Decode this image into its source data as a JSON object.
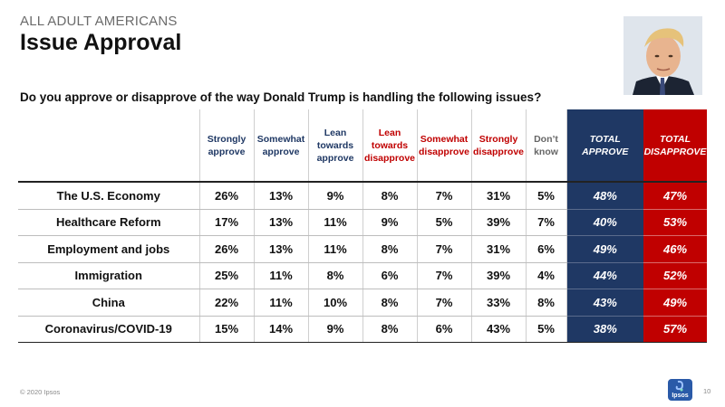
{
  "header": {
    "eyebrow": "ALL ADULT AMERICANS",
    "title": "Issue Approval",
    "question": "Do you approve or disapprove of the way Donald Trump is handling the following issues?"
  },
  "columns": [
    {
      "label": "Strongly approve",
      "tone": "blue"
    },
    {
      "label": "Somewhat approve",
      "tone": "blue"
    },
    {
      "label": "Lean towards approve",
      "tone": "blue"
    },
    {
      "label": "Lean towards disapprove",
      "tone": "red"
    },
    {
      "label": "Somewhat disapprove",
      "tone": "red"
    },
    {
      "label": "Strongly disapprove",
      "tone": "red"
    },
    {
      "label": "Don’t know",
      "tone": "grey"
    },
    {
      "label": "TOTAL APPROVE",
      "tone": "total-approve"
    },
    {
      "label": "TOTAL DISAPPROVE",
      "tone": "total-disapprove"
    }
  ],
  "rows": [
    {
      "issue": "The U.S. Economy",
      "values": [
        "26%",
        "13%",
        "9%",
        "8%",
        "7%",
        "31%",
        "5%",
        "48%",
        "47%"
      ]
    },
    {
      "issue": "Healthcare Reform",
      "values": [
        "17%",
        "13%",
        "11%",
        "9%",
        "5%",
        "39%",
        "7%",
        "40%",
        "53%"
      ]
    },
    {
      "issue": "Employment and jobs",
      "values": [
        "26%",
        "13%",
        "11%",
        "8%",
        "7%",
        "31%",
        "6%",
        "49%",
        "46%"
      ]
    },
    {
      "issue": "Immigration",
      "values": [
        "25%",
        "11%",
        "8%",
        "6%",
        "7%",
        "39%",
        "4%",
        "44%",
        "52%"
      ]
    },
    {
      "issue": "China",
      "values": [
        "22%",
        "11%",
        "10%",
        "8%",
        "7%",
        "33%",
        "8%",
        "43%",
        "49%"
      ]
    },
    {
      "issue": "Coronavirus/COVID-19",
      "values": [
        "15%",
        "14%",
        "9%",
        "8%",
        "6%",
        "43%",
        "5%",
        "38%",
        "57%"
      ]
    }
  ],
  "footer": {
    "copyright": "© 2020 Ipsos",
    "page_number": "10",
    "logo_text": "Ipsos"
  },
  "colors": {
    "approve": "#1f3864",
    "disapprove": "#c00000",
    "neutral": "#666666"
  }
}
